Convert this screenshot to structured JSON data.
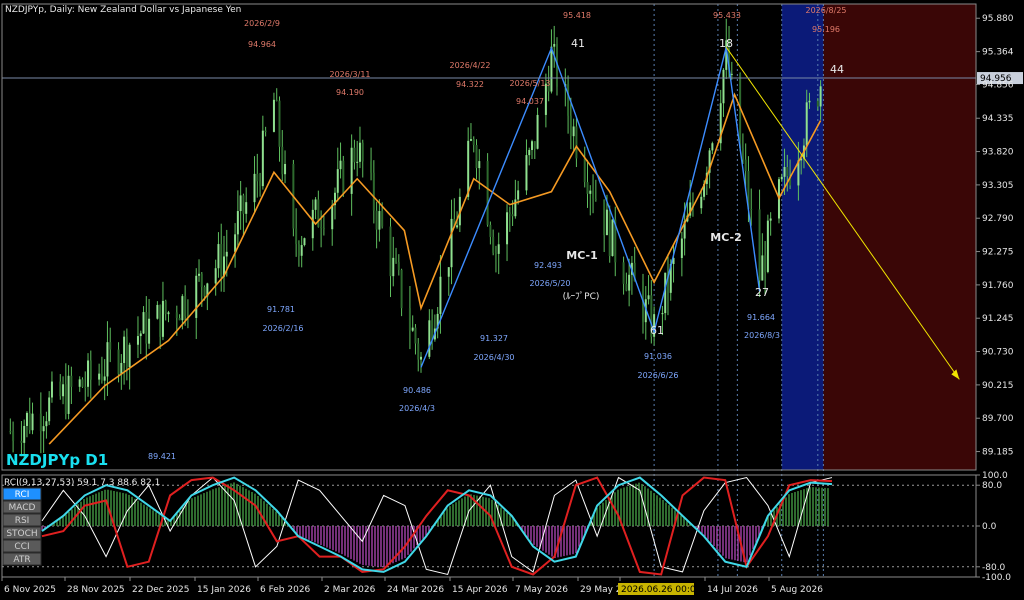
{
  "header": {
    "title": "NZDJPYp, Daily:  New Zealand Dollar vs Japanese Yen",
    "symbol_label": "NZDJPYp D1",
    "current_price": "94.956"
  },
  "price_axis": [
    "95.880",
    "95.364",
    "94.856",
    "94.335",
    "93.820",
    "93.305",
    "92.790",
    "92.275",
    "91.760",
    "91.245",
    "90.730",
    "90.215",
    "89.700",
    "89.185"
  ],
  "time_axis": [
    "6 Nov 2025",
    "28 Nov 2025",
    "22 Dec 2025",
    "15 Jan 2026",
    "6 Feb 2026",
    "2 Mar 2026",
    "24 Mar 2026",
    "15 Apr 2026",
    "7 May 2026",
    "29 May 2026",
    "2026.06.26 00:00",
    "14 Jul 2026",
    "5 Aug 2026"
  ],
  "indicator": {
    "header": "RCI(9,13,27,53) 59.1 7.3 88.6 82.1",
    "axis": [
      "100.0",
      "80.0",
      "0.0",
      "-80.0",
      "-100.0"
    ],
    "buttons": [
      "RCI",
      "MACD",
      "RSI",
      "STOCH",
      "CCI",
      "ATR"
    ]
  },
  "annotations": {
    "red": [
      "2026/2/9",
      "94.964",
      "2026/3/11",
      "94.190",
      "2026/4/22",
      "94.322",
      "2026/5/13",
      "94.037",
      "95.418",
      "95.433",
      "2026/8/25",
      "95.196"
    ],
    "blue": [
      "89.421",
      "91.781",
      "2026/2/16",
      "90.486",
      "2026/4/3",
      "91.327",
      "2026/4/30",
      "92.493",
      "2026/5/20",
      "91.036",
      "2026/6/26",
      "91.664",
      "2026/8/3"
    ],
    "white": [
      "41",
      "18",
      "44",
      "61",
      "27",
      "MC-1",
      "MC-2",
      "(ﾙｰﾌﾟPC)"
    ]
  },
  "chart_data": {
    "type": "candlestick",
    "title": "NZDJPYp, Daily:  New Zealand Dollar vs Japanese Yen",
    "ylim": [
      88.9,
      96.1
    ],
    "x_range": [
      "2025-11-03",
      "2026-10-20"
    ],
    "close_series": [
      {
        "date": "2025-11-06",
        "value": 89.5
      },
      {
        "date": "2025-11-20",
        "value": 89.9
      },
      {
        "date": "2025-12-05",
        "value": 90.3
      },
      {
        "date": "2025-12-22",
        "value": 91.0
      },
      {
        "date": "2026-01-07",
        "value": 91.5
      },
      {
        "date": "2026-01-22",
        "value": 92.2
      },
      {
        "date": "2026-02-03",
        "value": 93.4
      },
      {
        "date": "2026-02-09",
        "value": 94.6
      },
      {
        "date": "2026-02-16",
        "value": 92.4
      },
      {
        "date": "2026-03-02",
        "value": 93.1
      },
      {
        "date": "2026-03-11",
        "value": 93.9
      },
      {
        "date": "2026-03-24",
        "value": 92.0
      },
      {
        "date": "2026-04-03",
        "value": 90.6
      },
      {
        "date": "2026-04-15",
        "value": 92.6
      },
      {
        "date": "2026-04-22",
        "value": 94.1
      },
      {
        "date": "2026-04-30",
        "value": 92.3
      },
      {
        "date": "2026-05-13",
        "value": 93.8
      },
      {
        "date": "2026-05-20",
        "value": 95.3
      },
      {
        "date": "2026-05-29",
        "value": 94.0
      },
      {
        "date": "2026-06-12",
        "value": 92.3
      },
      {
        "date": "2026-06-26",
        "value": 91.1
      },
      {
        "date": "2026-07-14",
        "value": 93.5
      },
      {
        "date": "2026-07-22",
        "value": 95.3
      },
      {
        "date": "2026-08-03",
        "value": 91.9
      },
      {
        "date": "2026-08-10",
        "value": 93.1
      },
      {
        "date": "2026-08-25",
        "value": 94.9
      }
    ],
    "ma_series": [
      {
        "date": "2025-11-20",
        "value": 89.3
      },
      {
        "date": "2025-12-10",
        "value": 90.2
      },
      {
        "date": "2026-01-02",
        "value": 90.9
      },
      {
        "date": "2026-01-22",
        "value": 91.9
      },
      {
        "date": "2026-02-09",
        "value": 93.5
      },
      {
        "date": "2026-02-24",
        "value": 92.7
      },
      {
        "date": "2026-03-11",
        "value": 93.4
      },
      {
        "date": "2026-03-28",
        "value": 92.6
      },
      {
        "date": "2026-04-03",
        "value": 91.4
      },
      {
        "date": "2026-04-22",
        "value": 93.4
      },
      {
        "date": "2026-05-05",
        "value": 93.0
      },
      {
        "date": "2026-05-20",
        "value": 93.2
      },
      {
        "date": "2026-05-29",
        "value": 93.9
      },
      {
        "date": "2026-06-10",
        "value": 93.2
      },
      {
        "date": "2026-06-26",
        "value": 91.8
      },
      {
        "date": "2026-07-14",
        "value": 93.3
      },
      {
        "date": "2026-07-25",
        "value": 94.7
      },
      {
        "date": "2026-08-10",
        "value": 93.1
      },
      {
        "date": "2026-08-25",
        "value": 94.3
      }
    ],
    "zigzag": [
      {
        "date": "2026-04-03",
        "value": 90.486
      },
      {
        "date": "2026-05-20",
        "value": 95.418
      },
      {
        "date": "2026-06-26",
        "value": 91.036
      },
      {
        "date": "2026-07-22",
        "value": 95.433
      },
      {
        "date": "2026-08-03",
        "value": 91.664
      }
    ],
    "trendline": [
      {
        "date": "2026-07-22",
        "value": 95.433
      },
      {
        "date": "2026-10-14",
        "value": 90.3
      }
    ],
    "current_price": 94.956,
    "highlight_zones": [
      {
        "start": "2026-08-11",
        "end": "2026-08-26",
        "color": "#0b1a78"
      },
      {
        "start": "2026-08-26",
        "end": "2026-10-20",
        "color": "#3a0606"
      }
    ],
    "indicator_ylim": [
      -100,
      100
    ],
    "rci_series": [
      {
        "name": "",
        "color": "#ffffff",
        "values": [
          10,
          70,
          20,
          -60,
          30,
          80,
          -10,
          60,
          95,
          50,
          -80,
          -40,
          90,
          70,
          20,
          -30,
          60,
          40,
          -85,
          -95,
          30,
          80,
          -60,
          -90,
          60,
          90,
          -20,
          95,
          70,
          -80,
          -90,
          30,
          85,
          95,
          40,
          -60,
          85,
          95
        ]
      },
      {
        "name": "",
        "color": "#e02020",
        "values": [
          -20,
          -10,
          40,
          50,
          -80,
          -70,
          60,
          90,
          95,
          70,
          40,
          -30,
          -20,
          -60,
          -60,
          -90,
          -85,
          -40,
          20,
          70,
          60,
          20,
          -80,
          -95,
          -60,
          80,
          95,
          20,
          -90,
          -95,
          60,
          95,
          90,
          -80,
          -20,
          80,
          90,
          88
        ]
      },
      {
        "name": "",
        "color": "#40d8e8",
        "values": [
          -10,
          20,
          60,
          80,
          70,
          40,
          10,
          60,
          80,
          95,
          70,
          30,
          -20,
          -40,
          -60,
          -85,
          -90,
          -70,
          -20,
          40,
          70,
          60,
          20,
          -40,
          -70,
          -60,
          40,
          80,
          95,
          60,
          20,
          -20,
          -70,
          -80,
          20,
          70,
          85,
          82
        ]
      }
    ]
  }
}
